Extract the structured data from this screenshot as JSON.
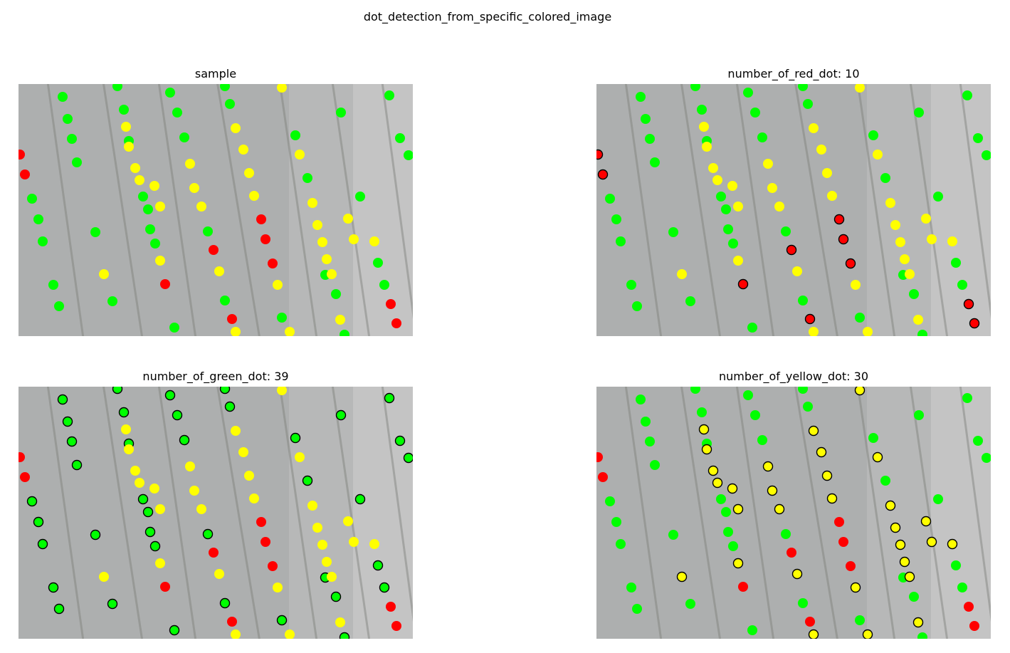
{
  "figure": {
    "title": "dot_detection_from_specific_colored_image"
  },
  "colors": {
    "red": "#ff0000",
    "green": "#00ff00",
    "yellow": "#ffff00",
    "ground": "#a9abab",
    "outline": "#000000"
  },
  "panels": [
    {
      "id": "sample",
      "title": "sample",
      "highlight": null
    },
    {
      "id": "red",
      "title": "number_of_red_dot: 10",
      "highlight": "red"
    },
    {
      "id": "green",
      "title": "number_of_green_dot: 39",
      "highlight": "green"
    },
    {
      "id": "yellow",
      "title": "number_of_yellow_dot: 30",
      "highlight": "yellow"
    }
  ]
}
